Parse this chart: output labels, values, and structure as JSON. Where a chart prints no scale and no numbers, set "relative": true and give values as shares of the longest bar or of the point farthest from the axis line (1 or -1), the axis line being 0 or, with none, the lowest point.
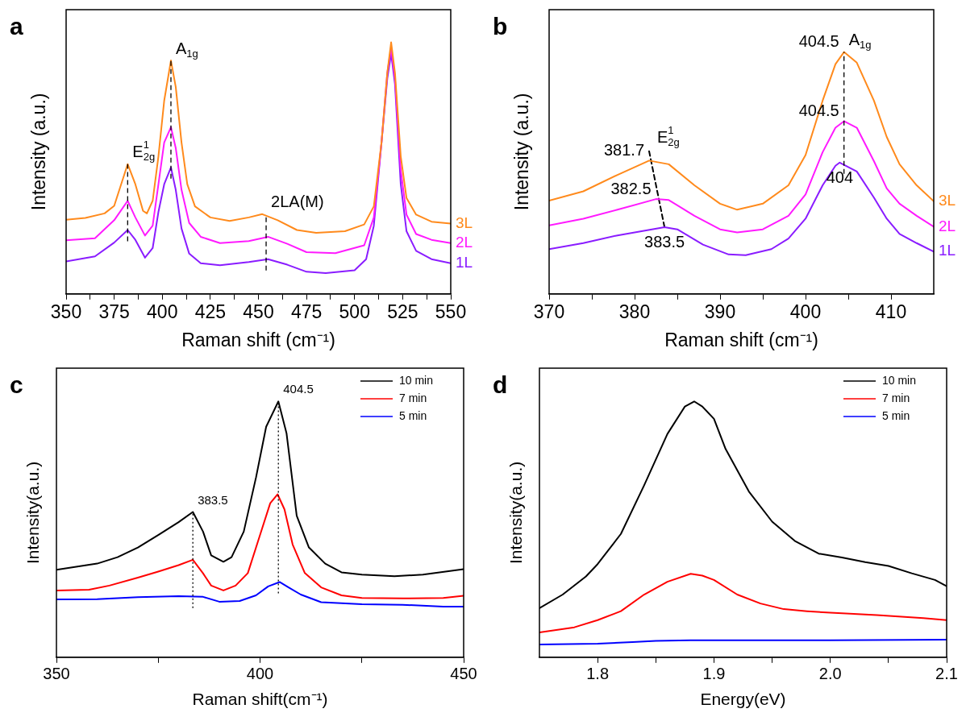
{
  "chart_data": [
    {
      "type": "line",
      "title": "a",
      "xlabel": "Raman shift (cm⁻¹)",
      "ylabel": "Intensity (a.u.)",
      "relative": true,
      "marker": "none",
      "xlim": [
        350,
        550
      ],
      "xticks": [
        350,
        {
          "value": 362.5,
          "label": null
        },
        375,
        {
          "value": 387.5,
          "label": null
        },
        400,
        {
          "value": 412.5,
          "label": null
        },
        425,
        {
          "value": 437.5,
          "label": null
        },
        450,
        {
          "value": 462.5,
          "label": null
        },
        475,
        {
          "value": 487.5,
          "label": null
        },
        500,
        {
          "value": 512.5,
          "label": null
        },
        525,
        {
          "value": 537.5,
          "label": null
        },
        550
      ],
      "series": [
        {
          "name": "3L",
          "color": "#ff8a1c",
          "x": [
            350,
            360,
            370,
            375,
            382,
            386,
            390,
            392,
            395,
            398,
            401,
            404.5,
            407,
            410,
            413,
            417,
            425,
            435,
            445,
            452,
            460,
            470,
            480,
            495,
            505,
            510,
            514,
            517,
            519,
            521,
            524,
            527,
            532,
            540,
            550
          ],
          "values": [
            0.295,
            0.302,
            0.32,
            0.35,
            0.516,
            0.436,
            0.33,
            0.32,
            0.37,
            0.547,
            0.768,
            0.928,
            0.823,
            0.602,
            0.436,
            0.348,
            0.304,
            0.29,
            0.304,
            0.317,
            0.293,
            0.254,
            0.243,
            0.249,
            0.276,
            0.348,
            0.602,
            0.878,
            1.0,
            0.878,
            0.547,
            0.381,
            0.315,
            0.287,
            0.28
          ]
        },
        {
          "name": "2L",
          "color": "#ff1aff",
          "x": [
            350,
            365,
            375,
            382,
            386,
            391,
            395,
            398,
            401,
            404.5,
            407,
            410,
            414,
            420,
            430,
            445,
            455,
            465,
            475,
            490,
            505,
            510,
            514,
            517,
            519,
            521,
            524,
            527,
            532,
            540,
            550
          ],
          "values": [
            0.213,
            0.221,
            0.293,
            0.37,
            0.304,
            0.232,
            0.271,
            0.436,
            0.602,
            0.663,
            0.58,
            0.414,
            0.282,
            0.227,
            0.202,
            0.21,
            0.227,
            0.199,
            0.166,
            0.162,
            0.193,
            0.304,
            0.602,
            0.878,
            0.978,
            0.856,
            0.492,
            0.315,
            0.238,
            0.215,
            0.202
          ]
        },
        {
          "name": "1L",
          "color": "#8a1cff",
          "x": [
            350,
            365,
            375,
            382,
            386,
            391,
            395,
            398,
            401,
            404.5,
            407,
            410,
            414,
            420,
            430,
            445,
            455,
            465,
            475,
            485,
            500,
            506,
            510,
            514,
            517,
            519,
            521,
            524,
            527,
            532,
            540,
            550
          ],
          "values": [
            0.129,
            0.149,
            0.204,
            0.254,
            0.215,
            0.144,
            0.182,
            0.326,
            0.436,
            0.503,
            0.414,
            0.26,
            0.16,
            0.122,
            0.114,
            0.127,
            0.138,
            0.116,
            0.088,
            0.083,
            0.094,
            0.138,
            0.271,
            0.602,
            0.856,
            0.956,
            0.834,
            0.436,
            0.249,
            0.171,
            0.138,
            0.122
          ]
        }
      ],
      "ref_lines": [
        {
          "axis": "x",
          "value": 382,
          "line_style": "dashed",
          "label": "E$^{1}$$_{2g}$"
        },
        {
          "axis": "x",
          "value": 404.5,
          "line_style": "dashed",
          "label": "A$_{1g}$"
        },
        {
          "axis": "x",
          "value": 454,
          "line_style": "dashed",
          "label": "2LA(M)"
        }
      ]
    },
    {
      "type": "line",
      "title": "b",
      "xlabel": "Raman shift (cm⁻¹)",
      "ylabel": "Intensity (a.u.)",
      "relative": true,
      "marker": "none",
      "xlim": [
        370,
        415
      ],
      "xticks": [
        370,
        {
          "value": 375,
          "label": null
        },
        380,
        {
          "value": 385,
          "label": null
        },
        390,
        {
          "value": 395,
          "label": null
        },
        400,
        {
          "value": 405,
          "label": null
        },
        410
      ],
      "series": [
        {
          "name": "3L",
          "color": "#ff8a1c",
          "x": [
            370,
            374,
            378,
            381.7,
            384,
            387,
            390,
            392,
            395,
            398,
            400,
            402,
            403.5,
            404.5,
            406,
            408,
            409.5,
            411,
            413,
            415
          ],
          "values": [
            0.386,
            0.424,
            0.492,
            0.551,
            0.536,
            0.449,
            0.373,
            0.348,
            0.373,
            0.449,
            0.574,
            0.799,
            0.95,
            1.0,
            0.956,
            0.799,
            0.649,
            0.536,
            0.449,
            0.383
          ]
        },
        {
          "name": "2L",
          "color": "#ff1aff",
          "x": [
            370,
            374,
            378,
            382.5,
            384,
            387,
            390,
            392,
            395,
            398,
            400,
            402,
            403.5,
            404.5,
            406,
            408,
            409.5,
            411,
            413,
            415
          ],
          "values": [
            0.283,
            0.311,
            0.348,
            0.392,
            0.388,
            0.323,
            0.267,
            0.254,
            0.267,
            0.323,
            0.411,
            0.586,
            0.687,
            0.714,
            0.687,
            0.549,
            0.436,
            0.373,
            0.323,
            0.278
          ]
        },
        {
          "name": "1L",
          "color": "#8a1cff",
          "x": [
            370,
            374,
            378,
            383.5,
            385,
            388,
            391,
            393,
            396,
            398,
            400,
            402,
            403.5,
            404,
            406,
            408,
            409.5,
            411,
            413,
            415
          ],
          "values": [
            0.185,
            0.21,
            0.242,
            0.276,
            0.267,
            0.204,
            0.163,
            0.16,
            0.185,
            0.229,
            0.311,
            0.449,
            0.53,
            0.543,
            0.506,
            0.398,
            0.311,
            0.248,
            0.21,
            0.175
          ]
        },
        {
          "type": "line",
          "color": "#000000",
          "line_style": "dashed",
          "x": [
            381.7,
            383.5
          ],
          "values": [
            0.59,
            0.276
          ]
        }
      ],
      "ref_lines": [
        {
          "axis": "x",
          "value": 404.5,
          "line_style": "dashed",
          "label": "A$_{1g}$"
        }
      ],
      "annotations": [
        {
          "text": "404.5",
          "x": 404.5,
          "y": 1.0
        },
        {
          "text": "404.5",
          "x": 404.5,
          "y": 0.714
        },
        {
          "text": "404",
          "x": 404,
          "y": 0.543
        },
        {
          "text": "381.7",
          "x": 381.7,
          "y": 0.551
        },
        {
          "text": "382.5",
          "x": 382.5,
          "y": 0.392
        },
        {
          "text": "383.5",
          "x": 383.5,
          "y": 0.276
        },
        "E$^{1}$$_{2g}$"
      ]
    },
    {
      "type": "line",
      "title": "c",
      "xlabel": "Raman shift(cm⁻¹)",
      "ylabel": "Intensity(a.u.)",
      "relative": true,
      "marker": "none",
      "legend": "top right",
      "xlim": [
        350,
        450
      ],
      "xticks": [
        350,
        {
          "value": 375,
          "label": null
        },
        400,
        {
          "value": 425,
          "label": null
        },
        450
      ],
      "series": [
        {
          "name": "10 min",
          "color": "#000000",
          "x": [
            350,
            360,
            365,
            370,
            375,
            380,
            383.5,
            386,
            388,
            391,
            393,
            396,
            399,
            401.5,
            404.5,
            406.5,
            409,
            412,
            416,
            420,
            425,
            433,
            440,
            450
          ],
          "values": [
            0.342,
            0.366,
            0.391,
            0.429,
            0.478,
            0.528,
            0.568,
            0.491,
            0.398,
            0.373,
            0.391,
            0.491,
            0.702,
            0.901,
            1.0,
            0.876,
            0.553,
            0.429,
            0.366,
            0.332,
            0.323,
            0.317,
            0.323,
            0.344
          ]
        },
        {
          "name": "7 min",
          "color": "#ff0000",
          "x": [
            350,
            358,
            363,
            370,
            375,
            380,
            383.5,
            386,
            388,
            391,
            394,
            397,
            400,
            402.5,
            404.3,
            406,
            408,
            411,
            415,
            420,
            425,
            435,
            445,
            450
          ],
          "values": [
            0.261,
            0.264,
            0.28,
            0.311,
            0.335,
            0.36,
            0.381,
            0.328,
            0.28,
            0.261,
            0.28,
            0.329,
            0.478,
            0.602,
            0.637,
            0.578,
            0.441,
            0.329,
            0.273,
            0.242,
            0.232,
            0.23,
            0.232,
            0.24
          ]
        },
        {
          "name": "5 min",
          "color": "#0000ff",
          "x": [
            350,
            360,
            370,
            380,
            386,
            390,
            395,
            399,
            402,
            404.8,
            407,
            410,
            415,
            425,
            435,
            445,
            450
          ],
          "values": [
            0.226,
            0.227,
            0.235,
            0.239,
            0.236,
            0.217,
            0.22,
            0.242,
            0.277,
            0.294,
            0.273,
            0.245,
            0.215,
            0.207,
            0.205,
            0.198,
            0.198
          ]
        }
      ],
      "ref_lines": [
        {
          "axis": "x",
          "value": 383.5,
          "line_style": "dotted",
          "label": "383.5"
        },
        {
          "axis": "x",
          "value": 404.5,
          "line_style": "dotted",
          "label": "404.5"
        }
      ]
    },
    {
      "type": "line",
      "title": "d",
      "xlabel": "Energy(eV)",
      "ylabel": "Intensity(a.u.)",
      "relative": true,
      "marker": "none",
      "legend": "top right",
      "xlim": [
        1.75,
        2.1
      ],
      "xticks": [
        1.8,
        {
          "value": 1.85,
          "label": null
        },
        1.9,
        {
          "value": 1.95,
          "label": null
        },
        {
          "value": 2.0,
          "label": "2.0"
        },
        {
          "value": 2.05,
          "label": null
        },
        2.1
      ],
      "series": [
        {
          "name": "10 min",
          "color": "#000000",
          "x": [
            1.75,
            1.77,
            1.79,
            1.8,
            1.82,
            1.84,
            1.86,
            1.875,
            1.883,
            1.89,
            1.9,
            1.91,
            1.93,
            1.95,
            1.97,
            1.99,
            2.01,
            2.03,
            2.05,
            2.07,
            2.09,
            2.1
          ],
          "values": [
            0.192,
            0.245,
            0.316,
            0.364,
            0.482,
            0.672,
            0.873,
            0.98,
            1.0,
            0.98,
            0.932,
            0.814,
            0.648,
            0.53,
            0.453,
            0.405,
            0.39,
            0.372,
            0.357,
            0.328,
            0.302,
            0.278
          ]
        },
        {
          "name": "7 min",
          "color": "#ff0000",
          "x": [
            1.75,
            1.78,
            1.8,
            1.82,
            1.84,
            1.86,
            1.88,
            1.89,
            1.9,
            1.92,
            1.94,
            1.96,
            1.98,
            2.0,
            2.04,
            2.08,
            2.1
          ],
          "values": [
            0.097,
            0.117,
            0.145,
            0.18,
            0.245,
            0.295,
            0.326,
            0.319,
            0.302,
            0.245,
            0.21,
            0.188,
            0.18,
            0.174,
            0.165,
            0.153,
            0.145
          ]
        },
        {
          "name": "5 min",
          "color": "#0000ff",
          "x": [
            1.75,
            1.8,
            1.83,
            1.85,
            1.88,
            2.0,
            2.1
          ],
          "values": [
            0.05,
            0.053,
            0.059,
            0.064,
            0.066,
            0.066,
            0.069
          ]
        }
      ]
    }
  ]
}
